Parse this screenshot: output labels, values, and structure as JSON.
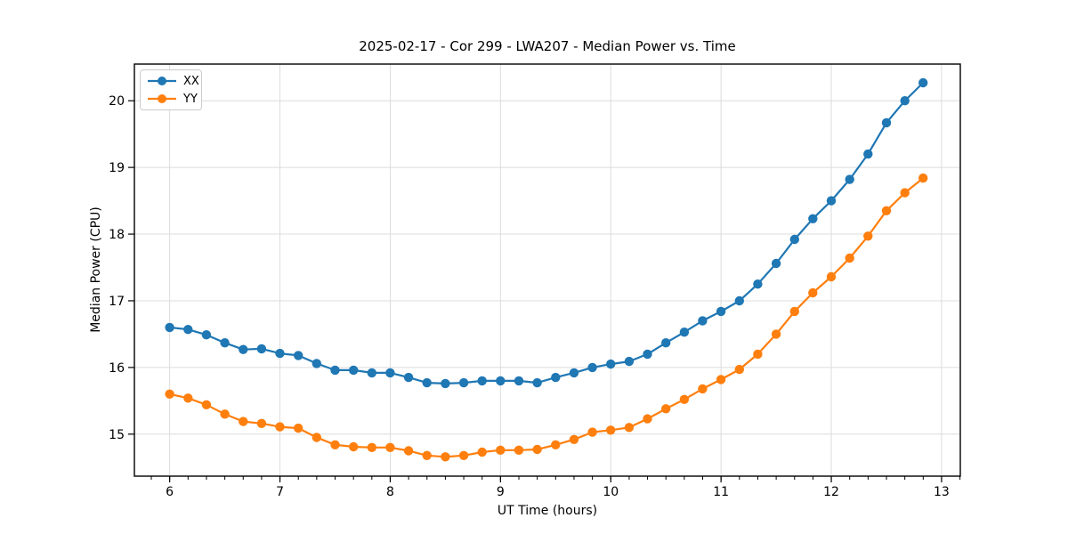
{
  "chart_data": {
    "type": "line",
    "title": "2025-02-17 - Cor 299 - LWA207 - Median Power vs. Time",
    "xlabel": "UT Time (hours)",
    "ylabel": "Median Power (CPU)",
    "xlim": [
      5.68,
      13.17
    ],
    "ylim": [
      14.37,
      20.55
    ],
    "xticks": [
      6,
      7,
      8,
      9,
      10,
      11,
      12,
      13
    ],
    "yticks": [
      15,
      16,
      17,
      18,
      19,
      20
    ],
    "minor_xtick_interval_hours": 0.16667,
    "grid": true,
    "legend_position": "upper-left",
    "x": [
      6.0,
      6.167,
      6.333,
      6.5,
      6.667,
      6.833,
      7.0,
      7.167,
      7.333,
      7.5,
      7.667,
      7.833,
      8.0,
      8.167,
      8.333,
      8.5,
      8.667,
      8.833,
      9.0,
      9.167,
      9.333,
      9.5,
      9.667,
      9.833,
      10.0,
      10.167,
      10.333,
      10.5,
      10.667,
      10.833,
      11.0,
      11.167,
      11.333,
      11.5,
      11.667,
      11.833,
      12.0,
      12.167,
      12.333,
      12.5,
      12.667,
      12.833
    ],
    "series": [
      {
        "name": "XX",
        "color": "#1f77b4",
        "values": [
          16.6,
          16.57,
          16.49,
          16.37,
          16.27,
          16.28,
          16.21,
          16.18,
          16.06,
          15.96,
          15.96,
          15.92,
          15.92,
          15.85,
          15.77,
          15.76,
          15.77,
          15.8,
          15.8,
          15.8,
          15.77,
          15.85,
          15.92,
          16.0,
          16.05,
          16.09,
          16.2,
          16.37,
          16.53,
          16.7,
          16.84,
          17.0,
          17.25,
          17.56,
          17.92,
          18.23,
          18.5,
          18.82,
          19.2,
          19.67,
          20.0,
          20.27
        ]
      },
      {
        "name": "YY",
        "color": "#ff7f0e",
        "values": [
          15.6,
          15.54,
          15.44,
          15.3,
          15.19,
          15.16,
          15.11,
          15.09,
          14.95,
          14.84,
          14.81,
          14.8,
          14.8,
          14.75,
          14.68,
          14.66,
          14.68,
          14.73,
          14.76,
          14.76,
          14.77,
          14.84,
          14.92,
          15.03,
          15.06,
          15.1,
          15.23,
          15.38,
          15.52,
          15.68,
          15.82,
          15.97,
          16.2,
          16.5,
          16.84,
          17.12,
          17.36,
          17.64,
          17.97,
          18.35,
          18.62,
          18.84
        ]
      }
    ]
  },
  "style_colors": {
    "grid": "#dcdcdc",
    "spine": "#000000",
    "tick": "#000000",
    "text": "#000000"
  }
}
